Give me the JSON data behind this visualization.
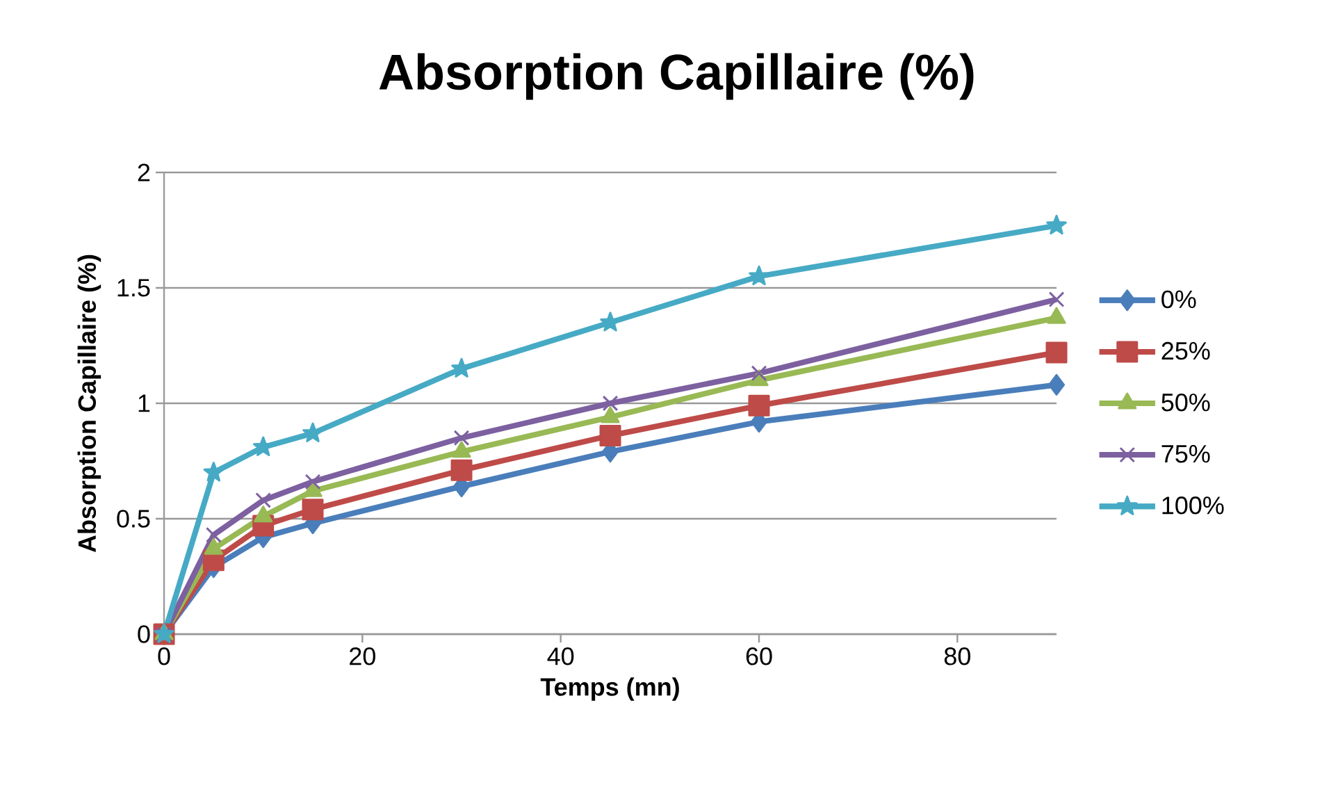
{
  "chart_data": {
    "type": "line",
    "title": "Absorption Capillaire (%)",
    "xlabel": "Temps (mn)",
    "ylabel": "Absorption Capillaire (%)",
    "x": [
      0,
      5,
      10,
      15,
      30,
      45,
      60,
      90
    ],
    "xlim": [
      0,
      90
    ],
    "xticks": [
      0,
      20,
      40,
      60,
      80
    ],
    "ylim": [
      0,
      2
    ],
    "yticks": [
      0,
      0.5,
      1,
      1.5,
      2
    ],
    "grid": "y",
    "legend": "right",
    "line_style": "solid",
    "series": [
      {
        "name": "0%",
        "color": "#4a7ebb",
        "marker": "diamond",
        "values": [
          0,
          0.29,
          0.42,
          0.48,
          0.64,
          0.79,
          0.92,
          1.08
        ]
      },
      {
        "name": "25%",
        "color": "#be4b48",
        "marker": "square",
        "values": [
          0,
          0.32,
          0.47,
          0.54,
          0.71,
          0.86,
          0.99,
          1.22
        ]
      },
      {
        "name": "50%",
        "color": "#98b954",
        "marker": "triangle",
        "values": [
          0,
          0.37,
          0.51,
          0.62,
          0.79,
          0.94,
          1.1,
          1.37
        ]
      },
      {
        "name": "75%",
        "color": "#7d60a0",
        "marker": "cross",
        "values": [
          0,
          0.43,
          0.58,
          0.66,
          0.85,
          1.0,
          1.13,
          1.45
        ]
      },
      {
        "name": "100%",
        "color": "#46aac5",
        "marker": "star",
        "values": [
          0,
          0.7,
          0.81,
          0.87,
          1.15,
          1.35,
          1.55,
          1.77
        ]
      }
    ]
  }
}
